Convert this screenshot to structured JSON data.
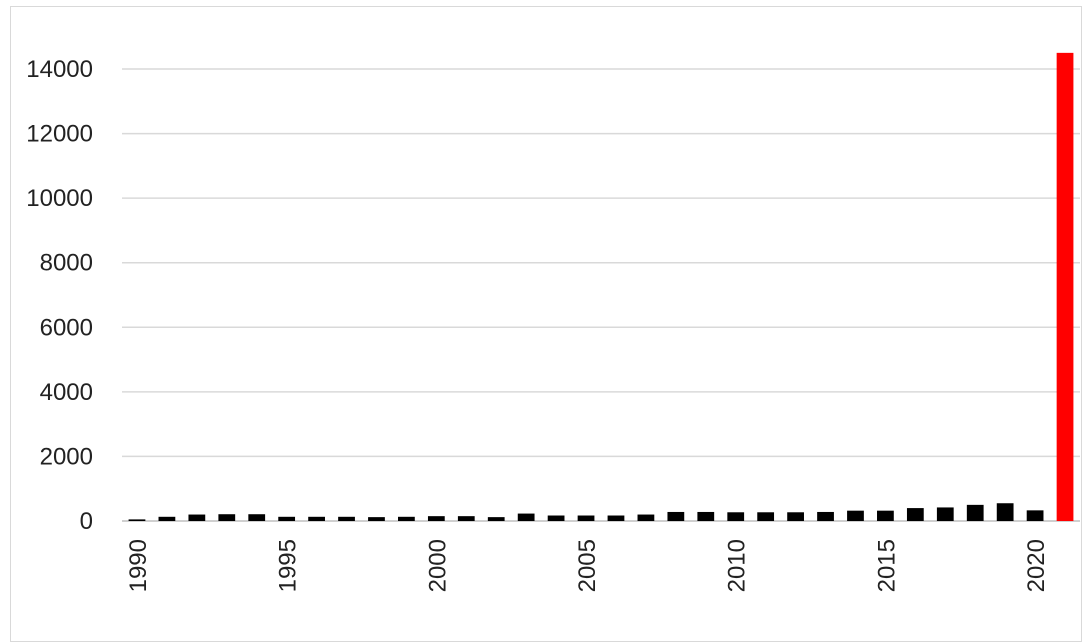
{
  "chart_data": {
    "type": "bar",
    "title": "",
    "xlabel": "",
    "ylabel": "",
    "ylim": [
      0,
      14000
    ],
    "yticks": [
      0,
      2000,
      4000,
      6000,
      8000,
      10000,
      12000,
      14000
    ],
    "xtick_labels": [
      "1990",
      "1995",
      "2000",
      "2005",
      "2010",
      "2015",
      "2020"
    ],
    "grid": true,
    "legend": "none",
    "colors": {
      "bar": "#000000",
      "highlight_bar": "#ff0000",
      "grid": "#d9d9d9",
      "axis": "#bfbfbf"
    },
    "categories": [
      "1990",
      "1991",
      "1992",
      "1993",
      "1994",
      "1995",
      "1996",
      "1997",
      "1998",
      "1999",
      "2000",
      "2001",
      "2002",
      "2003",
      "2004",
      "2005",
      "2006",
      "2007",
      "2008",
      "2009",
      "2010",
      "2011",
      "2012",
      "2013",
      "2014",
      "2015",
      "2016",
      "2017",
      "2018",
      "2019",
      "2020",
      "2021"
    ],
    "values": [
      50,
      130,
      200,
      210,
      210,
      130,
      130,
      130,
      120,
      130,
      150,
      150,
      120,
      230,
      170,
      170,
      170,
      200,
      280,
      280,
      270,
      270,
      270,
      280,
      320,
      320,
      400,
      420,
      500,
      550,
      330,
      14500
    ],
    "highlighted_category": "2021"
  }
}
